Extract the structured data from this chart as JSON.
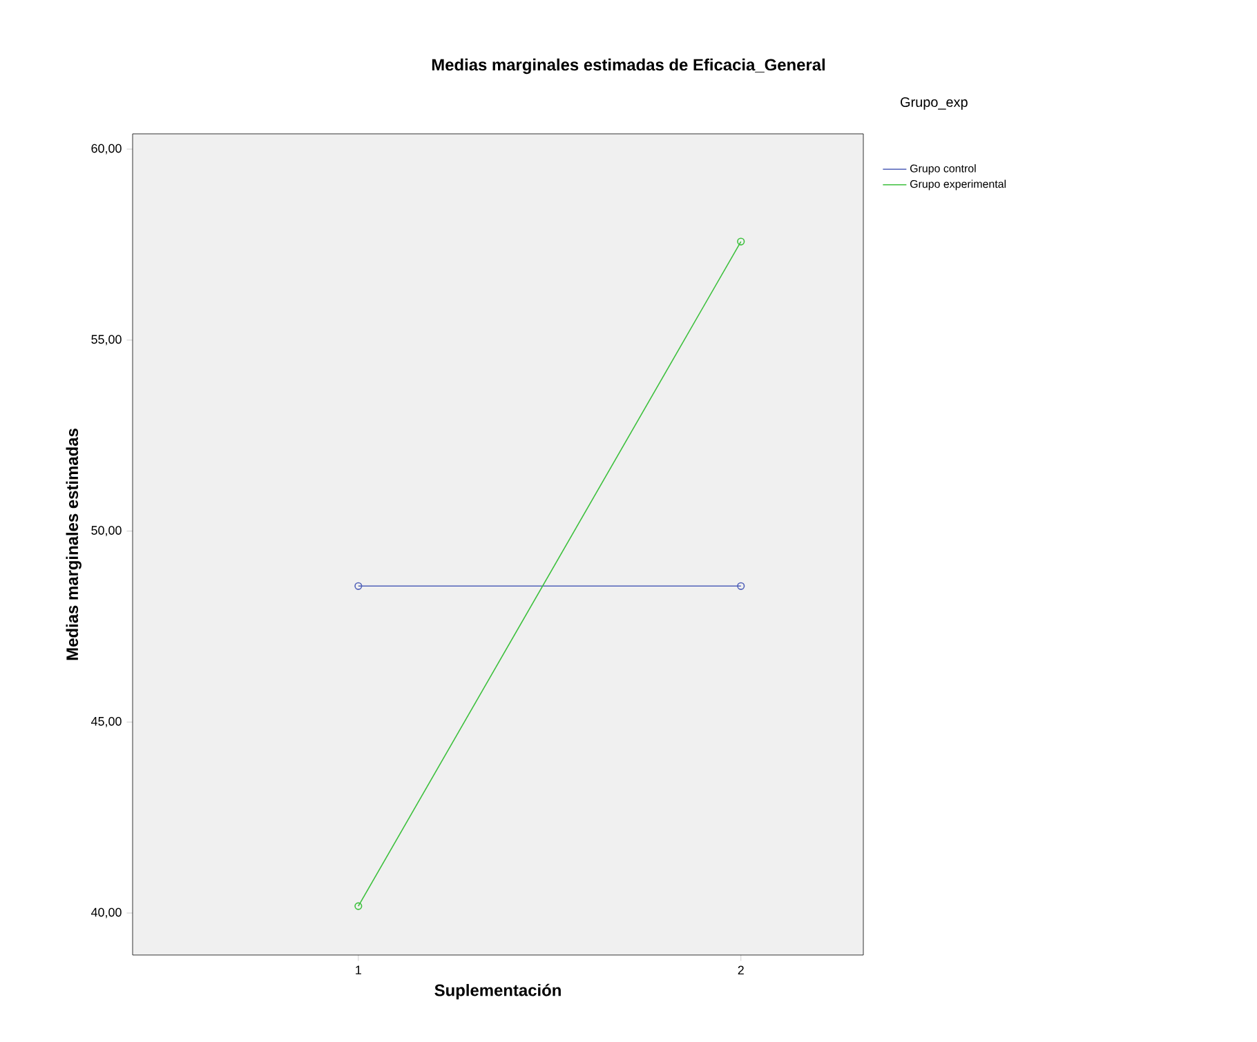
{
  "chart_data": {
    "type": "line",
    "title": "Medias marginales estimadas de Eficacia_General",
    "xlabel": "Suplementación",
    "ylabel": "Medias marginales estimadas",
    "legend_title": "Grupo_exp",
    "categories": [
      "1",
      "2"
    ],
    "series": [
      {
        "name": "Grupo control",
        "color": "#5060b8",
        "values": [
          48.56,
          48.56
        ]
      },
      {
        "name": "Grupo experimental",
        "color": "#3cc03c",
        "values": [
          40.18,
          57.58
        ]
      }
    ],
    "ylim": [
      38.9,
      60.4
    ],
    "yticks": [
      {
        "value": 40,
        "label": "40,00"
      },
      {
        "value": 45,
        "label": "45,00"
      },
      {
        "value": 50,
        "label": "50,00"
      },
      {
        "value": 55,
        "label": "55,00"
      },
      {
        "value": 60,
        "label": "60,00"
      }
    ],
    "grid": false,
    "legend": "top right",
    "marker": "circle",
    "line_style": "solid"
  }
}
